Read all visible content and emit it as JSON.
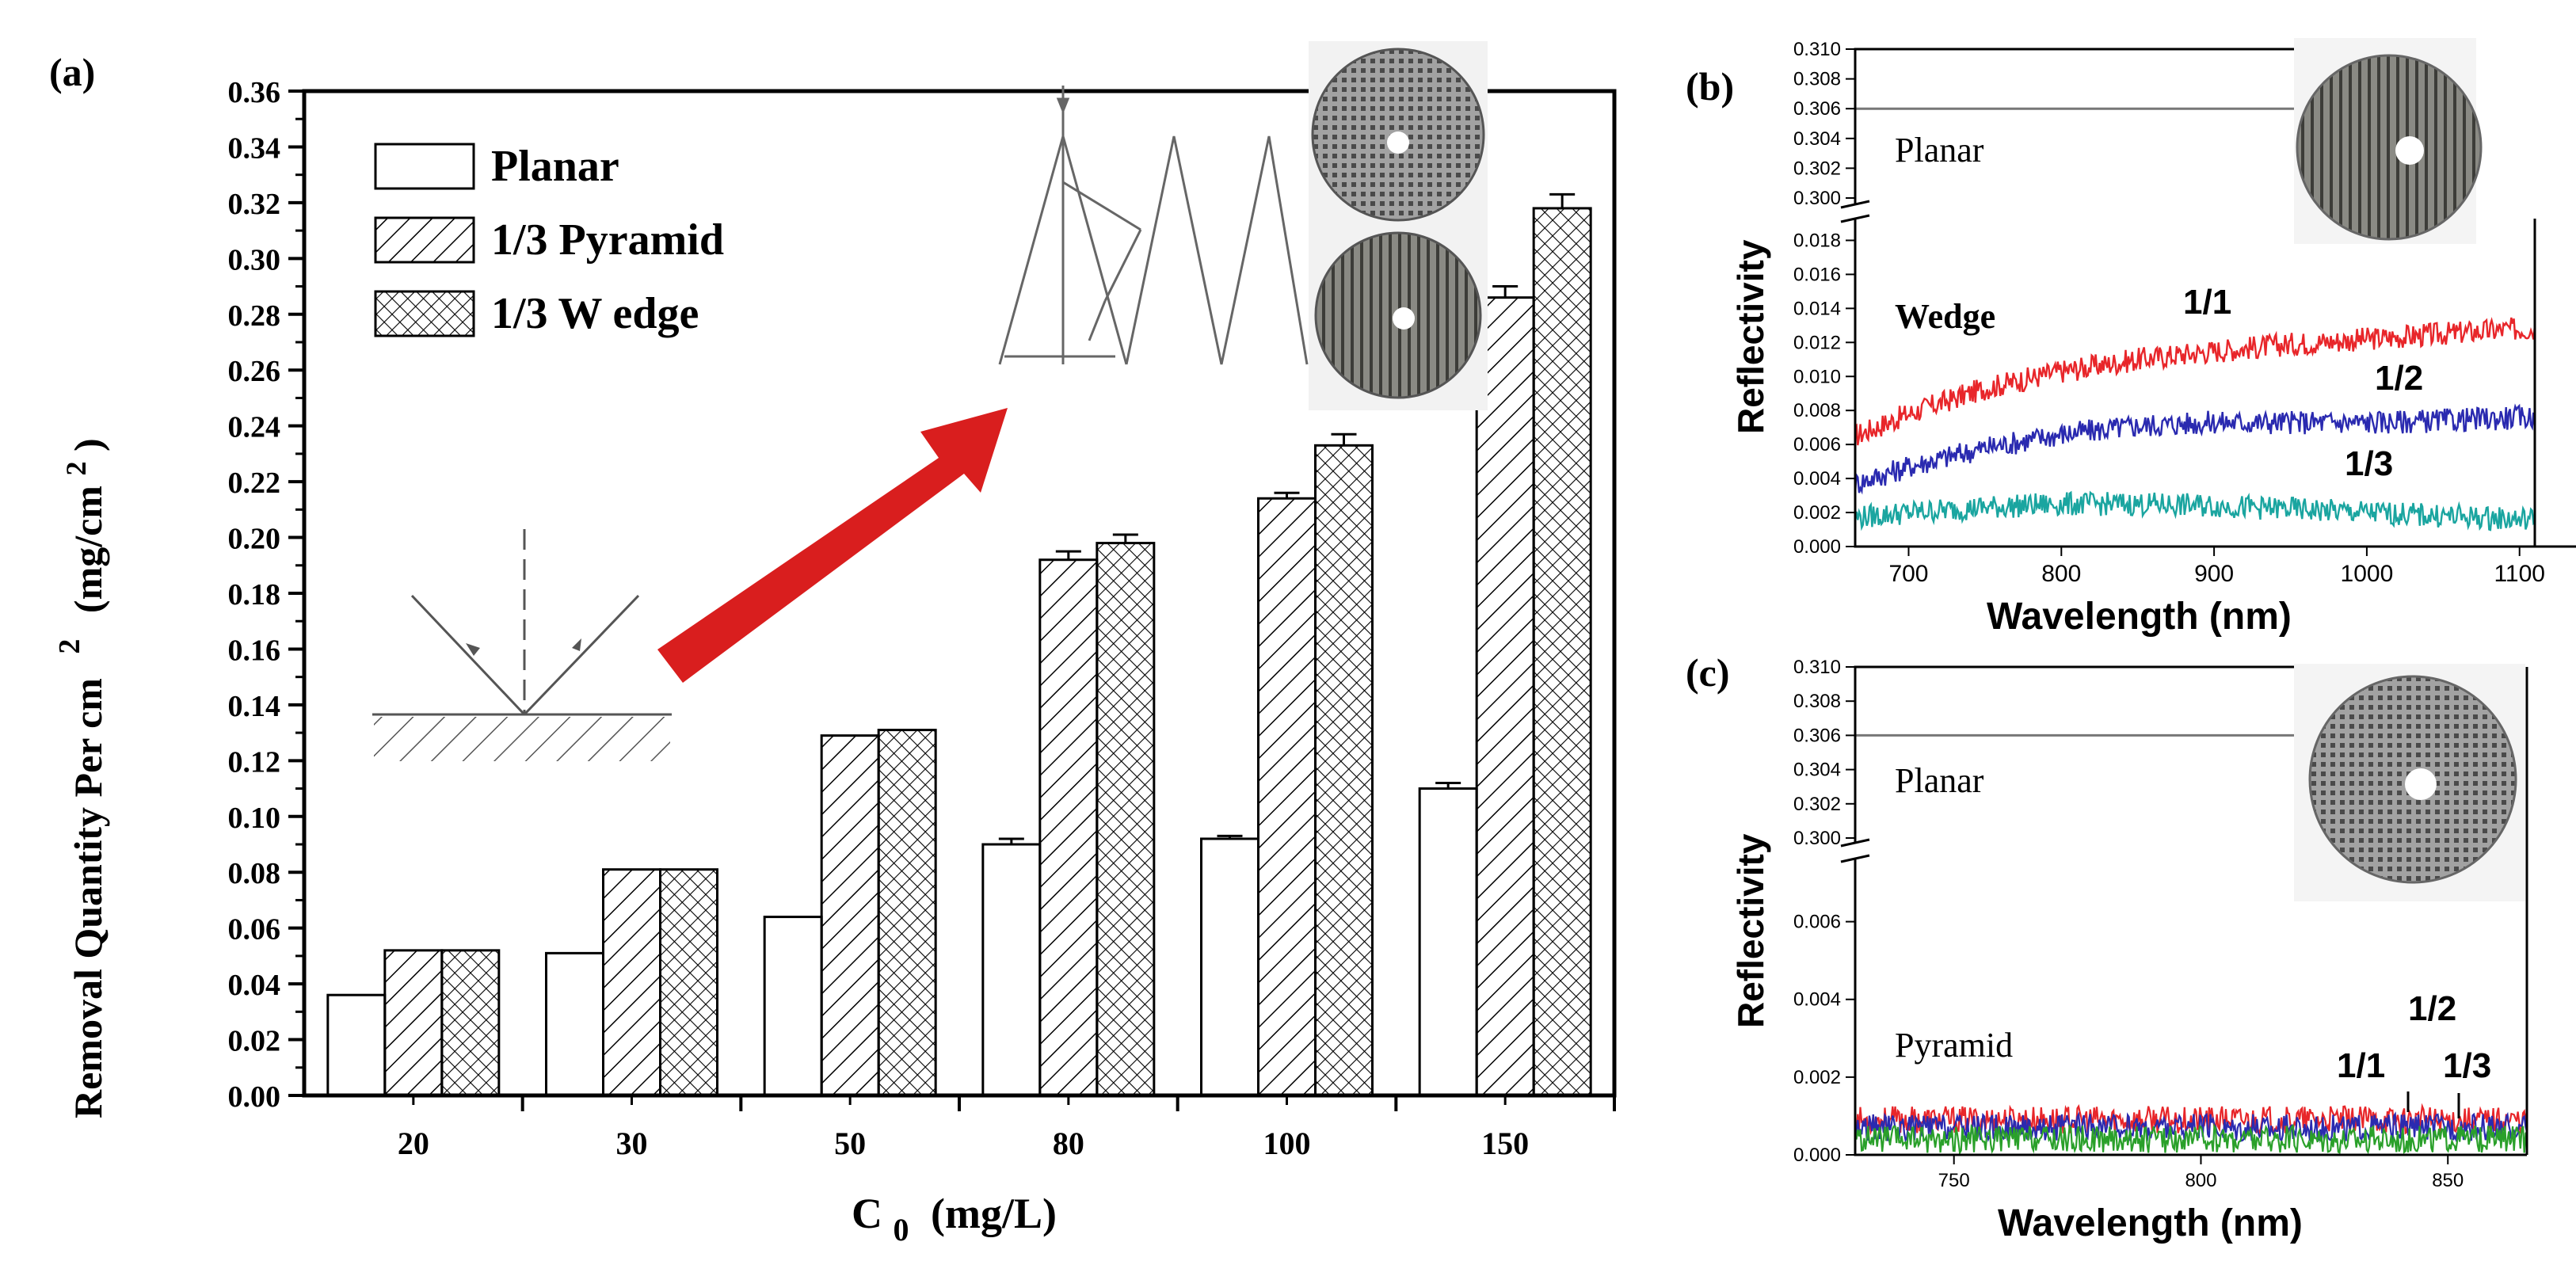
{
  "colors": {
    "arrow": "#d91e1e",
    "red_trace": "#e8262a",
    "blue_trace": "#2a2ab0",
    "teal_trace": "#1aa5a0",
    "green_trace": "#2aa02a",
    "axis": "#000000"
  },
  "panel_a": {
    "label": "(a)",
    "ylabel_main": "Removal Quantity Per cm",
    "ylabel_sup": "2",
    "ylabel_units": "(mg/cm",
    "ylabel_units_sup": "2",
    "ylabel_units_close": ")",
    "xlabel_main": "C",
    "xlabel_sub": "0",
    "xlabel_units": "(mg/L)",
    "legend": [
      "Planar",
      "1/3 Pyramid",
      "1/3 W edge"
    ]
  },
  "panel_b": {
    "label": "(b)",
    "xlabel": "Wavelength (nm)",
    "ylabel": "Reflectivity",
    "text_planar": "Planar",
    "text_wedge": "Wedge",
    "curve_labels": [
      "1/1",
      "1/2",
      "1/3"
    ]
  },
  "panel_c": {
    "label": "(c)",
    "xlabel": "Wavelength (nm)",
    "ylabel": "Reflectivity",
    "text_planar": "Planar",
    "text_pyramid": "Pyramid",
    "curve_labels": [
      "1/2",
      "1/1",
      "1/3"
    ]
  },
  "chart_data": [
    {
      "type": "bar",
      "panel": "(a)",
      "categories": [
        "20",
        "30",
        "50",
        "80",
        "100",
        "150"
      ],
      "series": [
        {
          "name": "Planar",
          "values": [
            0.036,
            0.051,
            0.064,
            0.09,
            0.092,
            0.11
          ],
          "errors": [
            0,
            0,
            0,
            0.002,
            0.001,
            0.002
          ]
        },
        {
          "name": "1/3 Pyramid",
          "values": [
            0.052,
            0.081,
            0.129,
            0.192,
            0.214,
            0.286
          ],
          "errors": [
            0,
            0,
            0,
            0.003,
            0.002,
            0.004
          ]
        },
        {
          "name": "1/3 W edge",
          "values": [
            0.052,
            0.081,
            0.131,
            0.198,
            0.233,
            0.318
          ],
          "errors": [
            0,
            0,
            0,
            0.003,
            0.004,
            0.005
          ]
        }
      ],
      "ylim": [
        0,
        0.36
      ],
      "yticks": [
        "0.00",
        "0.02",
        "0.04",
        "0.06",
        "0.08",
        "0.10",
        "0.12",
        "0.14",
        "0.16",
        "0.18",
        "0.20",
        "0.22",
        "0.24",
        "0.26",
        "0.28",
        "0.30",
        "0.32",
        "0.34",
        "0.36"
      ],
      "xlabel": "C0 (mg/L)",
      "ylabel": "Removal Quantity Per cm 2 (mg/cm2)"
    },
    {
      "type": "line",
      "panel": "(b)",
      "xlim": [
        665,
        1110
      ],
      "xticks": [
        "700",
        "800",
        "900",
        "1000",
        "1100"
      ],
      "yticks_upper": [
        "0.300",
        "0.302",
        "0.304",
        "0.306",
        "0.308",
        "0.310"
      ],
      "yticks_lower": [
        "0.000",
        "0.002",
        "0.004",
        "0.006",
        "0.008",
        "0.010",
        "0.012",
        "0.014",
        "0.016",
        "0.018"
      ],
      "series": [
        {
          "name": "Planar",
          "values": [
            0.306
          ]
        },
        {
          "name": "1/1",
          "x": [
            665,
            700,
            750,
            800,
            850,
            900,
            950,
            1000,
            1050,
            1100
          ],
          "values": [
            0.0065,
            0.0078,
            0.0093,
            0.0103,
            0.011,
            0.0115,
            0.0119,
            0.0122,
            0.0125,
            0.0128
          ]
        },
        {
          "name": "1/2",
          "x": [
            665,
            700,
            750,
            800,
            850,
            900,
            950,
            1000,
            1050,
            1100
          ],
          "values": [
            0.0037,
            0.0047,
            0.0058,
            0.0066,
            0.0071,
            0.0073,
            0.0073,
            0.0073,
            0.0074,
            0.0076
          ]
        },
        {
          "name": "1/3",
          "x": [
            665,
            700,
            750,
            800,
            850,
            900,
            950,
            1000,
            1050,
            1100
          ],
          "values": [
            0.0017,
            0.002,
            0.0023,
            0.0025,
            0.0025,
            0.0024,
            0.0022,
            0.002,
            0.0018,
            0.0016
          ]
        }
      ],
      "xlabel": "Wavelength (nm)",
      "ylabel": "Reflectivity"
    },
    {
      "type": "line",
      "panel": "(c)",
      "xlim": [
        730,
        866
      ],
      "xticks": [
        "750",
        "800",
        "850"
      ],
      "yticks_upper": [
        "0.300",
        "0.302",
        "0.304",
        "0.306",
        "0.308",
        "0.310"
      ],
      "yticks_lower": [
        "0.000",
        "0.002",
        "0.004",
        "0.006"
      ],
      "series": [
        {
          "name": "Planar",
          "values": [
            0.306
          ]
        },
        {
          "name": "1/1",
          "x": [
            730,
            866
          ],
          "values": [
            0.0009,
            0.0009
          ]
        },
        {
          "name": "1/2",
          "x": [
            730,
            866
          ],
          "values": [
            0.0007,
            0.0007
          ]
        },
        {
          "name": "1/3",
          "x": [
            730,
            866
          ],
          "values": [
            0.0004,
            0.0004
          ]
        }
      ],
      "xlabel": "Wavelength (nm)",
      "ylabel": "Reflectivity"
    }
  ]
}
